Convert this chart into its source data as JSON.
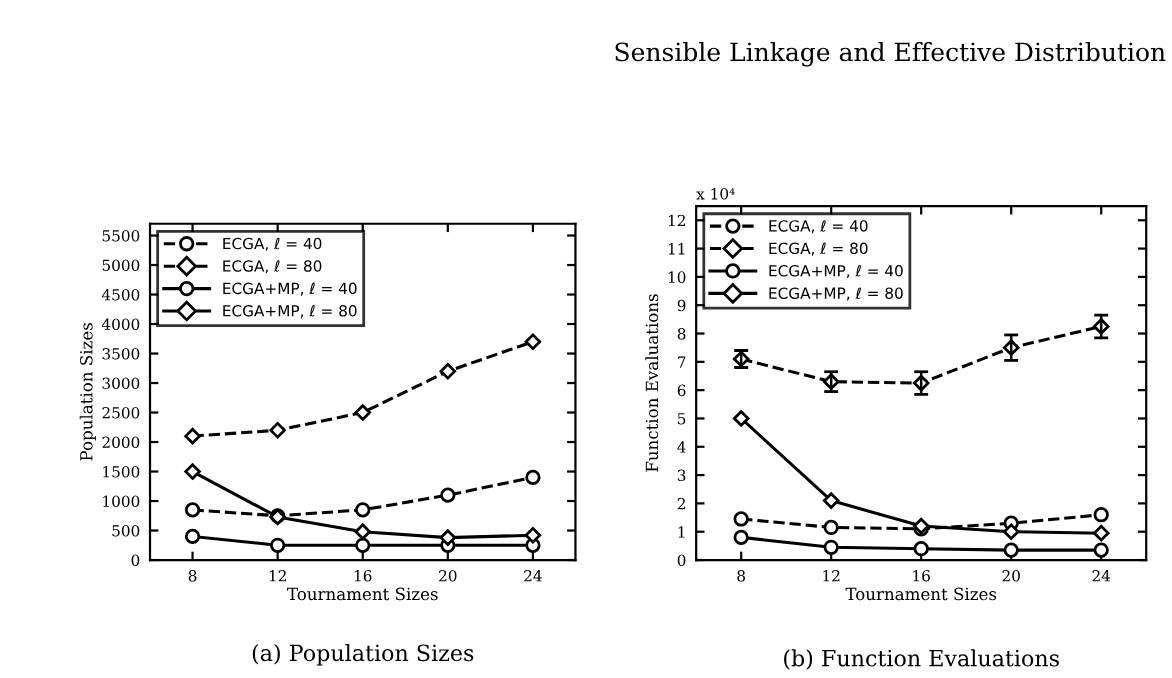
{
  "chart_data": [
    {
      "type": "line",
      "title": "(a) Population Sizes",
      "xlabel": "Tournament Sizes",
      "ylabel": "Population Sizes",
      "annotations": [
        "Sensible Linkage and Effective Distribution"
      ],
      "x": [
        8,
        12,
        16,
        20,
        24
      ],
      "xlim": [
        6,
        26
      ],
      "xticks": [
        8,
        12,
        16,
        20,
        24
      ],
      "ylim": [
        0,
        5700
      ],
      "yticks": [
        0,
        500,
        1000,
        1500,
        2000,
        2500,
        3000,
        3500,
        4000,
        4500,
        5000,
        5500
      ],
      "grid": false,
      "legend": "top left",
      "series": [
        {
          "name": "ECGA, ℓ = 40",
          "color": "#000000",
          "line_style": "dashed",
          "marker": "circle",
          "values": [
            850,
            750,
            850,
            1100,
            1400
          ]
        },
        {
          "name": "ECGA, ℓ = 80",
          "color": "#000000",
          "line_style": "dashed",
          "marker": "diamond",
          "values": [
            2100,
            2200,
            2500,
            3200,
            3700
          ]
        },
        {
          "name": "ECGA+MP, ℓ = 40",
          "color": "#000000",
          "line_style": "solid",
          "marker": "circle",
          "values": [
            400,
            250,
            250,
            250,
            250
          ]
        },
        {
          "name": "ECGA+MP, ℓ = 80",
          "color": "#000000",
          "line_style": "solid",
          "marker": "diamond",
          "values": [
            1500,
            730,
            480,
            380,
            420
          ]
        }
      ]
    },
    {
      "type": "line",
      "title": "(b) Function Evaluations",
      "xlabel": "Tournament Sizes",
      "ylabel": "Function Evaluations",
      "annotations": [
        "x 10⁴"
      ],
      "x": [
        8,
        12,
        16,
        20,
        24
      ],
      "xlim": [
        6,
        26
      ],
      "xticks": [
        8,
        12,
        16,
        20,
        24
      ],
      "ylim": [
        0,
        12.5
      ],
      "yticks": [
        0,
        1,
        2,
        3,
        4,
        5,
        6,
        7,
        8,
        9,
        10,
        11,
        12
      ],
      "grid": false,
      "legend": "top left",
      "series": [
        {
          "name": "ECGA, ℓ = 40",
          "color": "#000000",
          "line_style": "dashed",
          "marker": "circle",
          "values": [
            1.45,
            1.15,
            1.1,
            1.3,
            1.6
          ]
        },
        {
          "name": "ECGA, ℓ = 80",
          "color": "#000000",
          "line_style": "dashed",
          "marker": "diamond",
          "values": [
            7.1,
            6.3,
            6.25,
            7.5,
            8.25
          ],
          "errors": [
            0.3,
            0.35,
            0.4,
            0.45,
            0.4
          ]
        },
        {
          "name": "ECGA+MP, ℓ = 40",
          "color": "#000000",
          "line_style": "solid",
          "marker": "circle",
          "values": [
            0.8,
            0.45,
            0.4,
            0.35,
            0.35
          ]
        },
        {
          "name": "ECGA+MP, ℓ = 80",
          "color": "#000000",
          "line_style": "solid",
          "marker": "diamond",
          "values": [
            5.0,
            2.1,
            1.2,
            1.0,
            0.95
          ]
        }
      ]
    }
  ]
}
